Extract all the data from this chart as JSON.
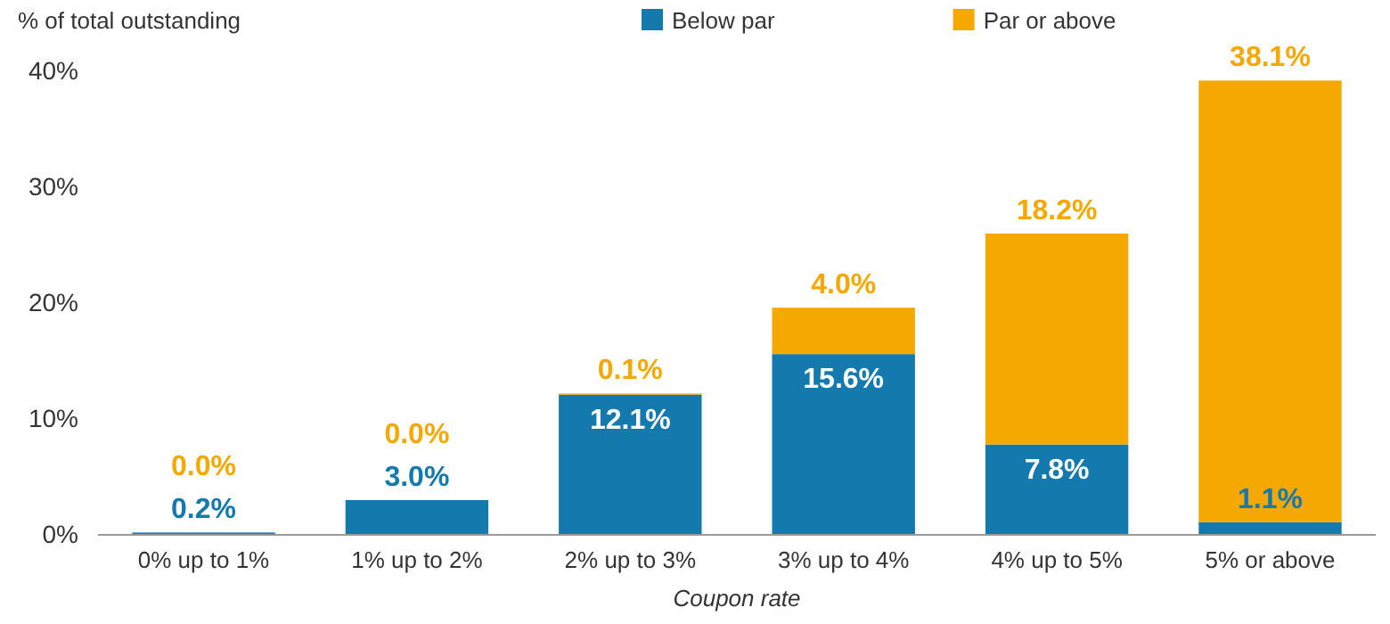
{
  "chart_data": {
    "type": "bar",
    "stacked": true,
    "ylabel": "% of total outstanding",
    "xlabel": "Coupon rate",
    "categories": [
      "0% up to 1%",
      "1% up to 2%",
      "2% up to 3%",
      "3% up to 4%",
      "4% up to 5%",
      "5% or above"
    ],
    "series": [
      {
        "name": "Below par",
        "color": "#1479ad",
        "values": [
          0.2,
          3.0,
          12.1,
          15.6,
          7.8,
          1.1
        ],
        "value_labels": [
          "0.2%",
          "3.0%",
          "12.1%",
          "15.6%",
          "7.8%",
          "1.1%"
        ]
      },
      {
        "name": "Par or above",
        "color": "#f5a800",
        "values": [
          0.0,
          0.0,
          0.1,
          4.0,
          18.2,
          38.1
        ],
        "value_labels": [
          "0.0%",
          "0.0%",
          "0.1%",
          "4.0%",
          "18.2%",
          "38.1%"
        ]
      }
    ],
    "ylim": [
      0,
      40
    ],
    "yticks": [
      {
        "value": 0,
        "label": "0%"
      },
      {
        "value": 10,
        "label": "10%"
      },
      {
        "value": 20,
        "label": "20%"
      },
      {
        "value": 30,
        "label": "30%"
      },
      {
        "value": 40,
        "label": "40%"
      }
    ],
    "grid": false,
    "legend": "top"
  }
}
